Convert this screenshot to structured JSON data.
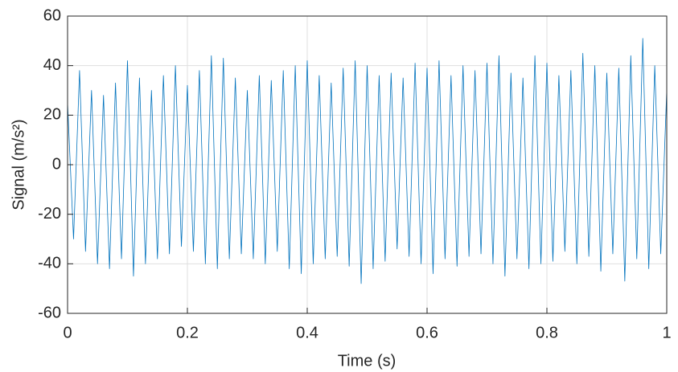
{
  "chart_data": {
    "type": "line",
    "xlabel": "Time (s)",
    "ylabel": "Signal (m/s²)",
    "xlim": [
      0,
      1
    ],
    "ylim": [
      -60,
      60
    ],
    "xticks": [
      0,
      0.2,
      0.4,
      0.6,
      0.8,
      1
    ],
    "yticks": [
      -60,
      -40,
      -20,
      0,
      20,
      40,
      60
    ],
    "grid": true,
    "x": [
      0,
      0.01,
      0.02,
      0.03,
      0.04,
      0.05,
      0.06,
      0.07,
      0.08,
      0.09,
      0.1,
      0.11,
      0.12,
      0.13,
      0.14,
      0.15,
      0.16,
      0.17,
      0.18,
      0.19,
      0.2,
      0.21,
      0.22,
      0.23,
      0.24,
      0.25,
      0.26,
      0.27,
      0.28,
      0.29,
      0.3,
      0.31,
      0.32,
      0.33,
      0.34,
      0.35,
      0.36,
      0.37,
      0.38,
      0.39,
      0.4,
      0.41,
      0.42,
      0.43,
      0.44,
      0.45,
      0.46,
      0.47,
      0.48,
      0.49,
      0.5,
      0.51,
      0.52,
      0.53,
      0.54,
      0.55,
      0.56,
      0.57,
      0.58,
      0.59,
      0.6,
      0.61,
      0.62,
      0.63,
      0.64,
      0.65,
      0.66,
      0.67,
      0.68,
      0.69,
      0.7,
      0.71,
      0.72,
      0.73,
      0.74,
      0.75,
      0.76,
      0.77,
      0.78,
      0.79,
      0.8,
      0.81,
      0.82,
      0.83,
      0.84,
      0.85,
      0.86,
      0.87,
      0.88,
      0.89,
      0.9,
      0.91,
      0.92,
      0.93,
      0.94,
      0.95,
      0.96,
      0.97,
      0.98,
      0.99,
      1
    ],
    "series": [
      {
        "color": "#0072bd",
        "values": [
          25,
          -30,
          38,
          -35,
          30,
          -40,
          28,
          -42,
          33,
          -38,
          42,
          -45,
          35,
          -40,
          30,
          -38,
          36,
          -36,
          40,
          -33,
          32,
          -35,
          38,
          -40,
          44,
          -42,
          43,
          -38,
          35,
          -36,
          30,
          -38,
          36,
          -40,
          34,
          -35,
          38,
          -42,
          40,
          -44,
          42,
          -40,
          36,
          -38,
          33,
          -37,
          39,
          -41,
          42,
          -48,
          40,
          -42,
          36,
          -39,
          37,
          -34,
          35,
          -37,
          41,
          -40,
          39,
          -44,
          42,
          -38,
          36,
          -41,
          40,
          -37,
          38,
          -36,
          41,
          -40,
          44,
          -45,
          37,
          -38,
          35,
          -42,
          44,
          -40,
          41,
          -39,
          36,
          -35,
          38,
          -40,
          45,
          -37,
          40,
          -43,
          37,
          -36,
          39,
          -47,
          44,
          -38,
          51,
          -42,
          40,
          -36,
          30
        ]
      }
    ]
  }
}
